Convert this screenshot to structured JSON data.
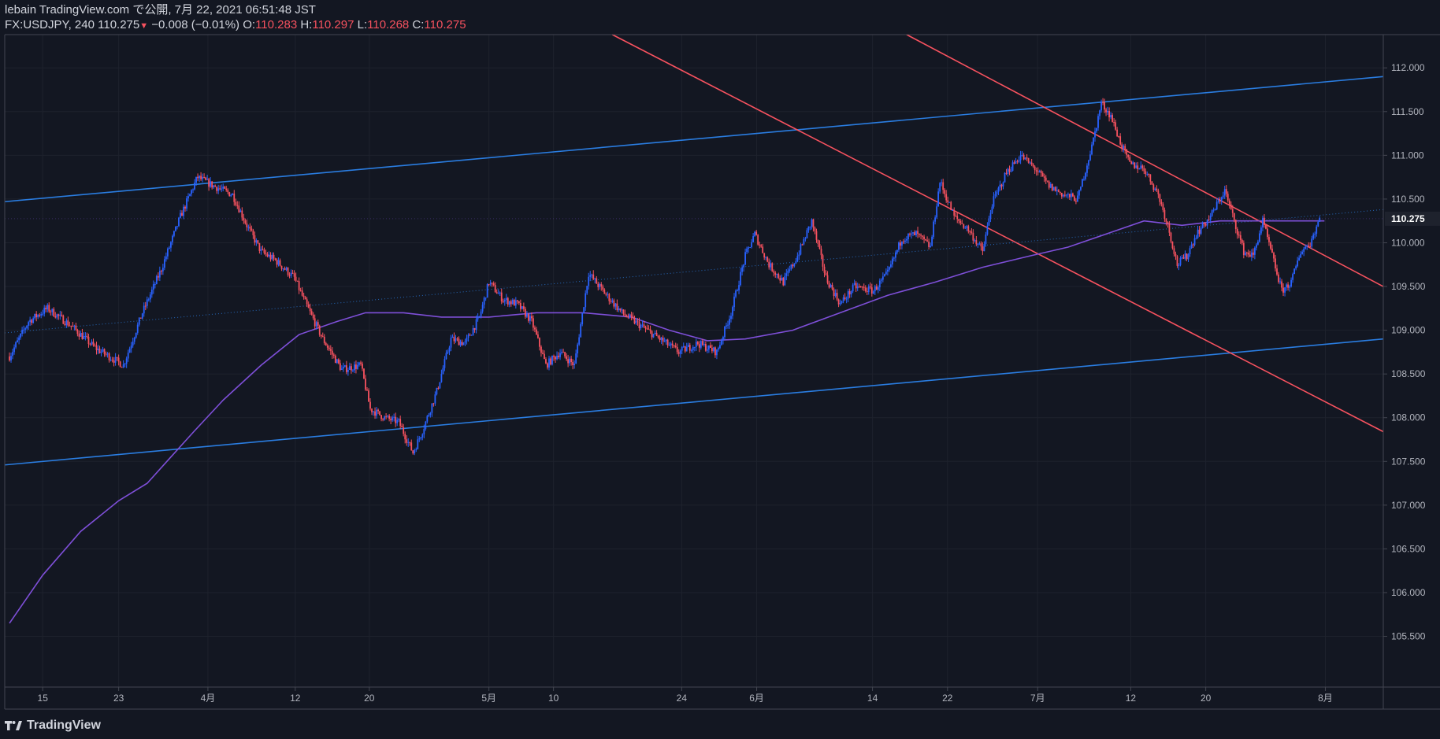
{
  "header": {
    "publish_line": "lebain TradingView.com で公開, 7月 22, 2021 06:51:48 JST",
    "symbol": "FX:USDJPY, 240",
    "last": "110.275",
    "change": "−0.008 (−0.01%)",
    "o_label": "O:",
    "o_value": "110.283",
    "h_label": "H:",
    "h_value": "110.297",
    "l_label": "L:",
    "l_value": "110.268",
    "c_label": "C:",
    "c_value": "110.275"
  },
  "brand": {
    "name": "TradingView",
    "icon": "tradingview-logo-icon"
  },
  "colors": {
    "background": "#131722",
    "up": "#2962ff",
    "down": "#f7525f",
    "trendline_blue": "#2a7de1",
    "trendline_red": "#f7525f",
    "ma": "#7e4fd8",
    "grid": "#1e222d",
    "axis_text": "#b2b5be"
  },
  "chart_data": {
    "type": "candlestick",
    "title": "",
    "xlabel": "",
    "ylabel": "",
    "ylim": [
      104.92,
      112.38
    ],
    "y_ticks": [
      "105.500",
      "106.000",
      "106.500",
      "107.000",
      "107.500",
      "108.000",
      "108.500",
      "109.000",
      "109.500",
      "110.000",
      "110.500",
      "111.000",
      "111.500",
      "112.000"
    ],
    "x_ticks": [
      {
        "label": "15",
        "day": 14.0
      },
      {
        "label": "23",
        "day": 22.0
      },
      {
        "label": "4月",
        "day": 31.4
      },
      {
        "label": "12",
        "day": 40.6
      },
      {
        "label": "20",
        "day": 48.4
      },
      {
        "label": "5月",
        "day": 61.0
      },
      {
        "label": "10",
        "day": 67.8
      },
      {
        "label": "24",
        "day": 81.3
      },
      {
        "label": "6月",
        "day": 89.2
      },
      {
        "label": "14",
        "day": 101.4
      },
      {
        "label": "22",
        "day": 109.3
      },
      {
        "label": "7月",
        "day": 118.8
      },
      {
        "label": "12",
        "day": 128.6
      },
      {
        "label": "20",
        "day": 136.5
      },
      {
        "label": "8月",
        "day": 149.1
      }
    ],
    "last_price_label": "110.275",
    "price_path": [
      {
        "day": 10.5,
        "price": 108.7
      },
      {
        "day": 12.5,
        "price": 109.1
      },
      {
        "day": 14.5,
        "price": 109.25
      },
      {
        "day": 17.0,
        "price": 109.05
      },
      {
        "day": 19.5,
        "price": 108.8
      },
      {
        "day": 22.5,
        "price": 108.6
      },
      {
        "day": 24.5,
        "price": 109.2
      },
      {
        "day": 26.5,
        "price": 109.7
      },
      {
        "day": 28.5,
        "price": 110.3
      },
      {
        "day": 30.3,
        "price": 110.75
      },
      {
        "day": 32.0,
        "price": 110.65
      },
      {
        "day": 34.0,
        "price": 110.55
      },
      {
        "day": 35.5,
        "price": 110.2
      },
      {
        "day": 37.0,
        "price": 109.9
      },
      {
        "day": 38.5,
        "price": 109.8
      },
      {
        "day": 40.5,
        "price": 109.6
      },
      {
        "day": 41.5,
        "price": 109.35
      },
      {
        "day": 43.5,
        "price": 108.9
      },
      {
        "day": 45.5,
        "price": 108.55
      },
      {
        "day": 47.5,
        "price": 108.6
      },
      {
        "day": 48.5,
        "price": 108.1
      },
      {
        "day": 50.0,
        "price": 108.0
      },
      {
        "day": 51.5,
        "price": 107.95
      },
      {
        "day": 53.0,
        "price": 107.6
      },
      {
        "day": 54.0,
        "price": 107.85
      },
      {
        "day": 55.5,
        "price": 108.3
      },
      {
        "day": 57.0,
        "price": 108.9
      },
      {
        "day": 58.5,
        "price": 108.85
      },
      {
        "day": 60.0,
        "price": 109.15
      },
      {
        "day": 61.0,
        "price": 109.55
      },
      {
        "day": 62.5,
        "price": 109.35
      },
      {
        "day": 64.0,
        "price": 109.3
      },
      {
        "day": 65.5,
        "price": 109.1
      },
      {
        "day": 67.0,
        "price": 108.6
      },
      {
        "day": 68.5,
        "price": 108.75
      },
      {
        "day": 70.0,
        "price": 108.6
      },
      {
        "day": 71.5,
        "price": 109.65
      },
      {
        "day": 73.0,
        "price": 109.45
      },
      {
        "day": 75.0,
        "price": 109.2
      },
      {
        "day": 77.0,
        "price": 109.05
      },
      {
        "day": 79.0,
        "price": 108.9
      },
      {
        "day": 81.0,
        "price": 108.75
      },
      {
        "day": 83.0,
        "price": 108.85
      },
      {
        "day": 85.0,
        "price": 108.75
      },
      {
        "day": 86.5,
        "price": 109.2
      },
      {
        "day": 88.0,
        "price": 109.85
      },
      {
        "day": 89.0,
        "price": 110.1
      },
      {
        "day": 90.5,
        "price": 109.75
      },
      {
        "day": 92.0,
        "price": 109.55
      },
      {
        "day": 93.5,
        "price": 109.85
      },
      {
        "day": 95.0,
        "price": 110.25
      },
      {
        "day": 96.5,
        "price": 109.6
      },
      {
        "day": 98.0,
        "price": 109.3
      },
      {
        "day": 99.5,
        "price": 109.5
      },
      {
        "day": 101.5,
        "price": 109.45
      },
      {
        "day": 103.0,
        "price": 109.65
      },
      {
        "day": 104.5,
        "price": 110.05
      },
      {
        "day": 106.0,
        "price": 110.1
      },
      {
        "day": 107.5,
        "price": 109.95
      },
      {
        "day": 108.5,
        "price": 110.7
      },
      {
        "day": 110.0,
        "price": 110.3
      },
      {
        "day": 111.5,
        "price": 110.15
      },
      {
        "day": 113.0,
        "price": 109.9
      },
      {
        "day": 114.0,
        "price": 110.45
      },
      {
        "day": 115.5,
        "price": 110.8
      },
      {
        "day": 117.0,
        "price": 111.0
      },
      {
        "day": 118.5,
        "price": 110.85
      },
      {
        "day": 120.0,
        "price": 110.65
      },
      {
        "day": 121.5,
        "price": 110.55
      },
      {
        "day": 123.0,
        "price": 110.5
      },
      {
        "day": 124.5,
        "price": 111.1
      },
      {
        "day": 125.5,
        "price": 111.6
      },
      {
        "day": 126.5,
        "price": 111.45
      },
      {
        "day": 127.5,
        "price": 111.15
      },
      {
        "day": 128.5,
        "price": 110.9
      },
      {
        "day": 130.0,
        "price": 110.85
      },
      {
        "day": 131.5,
        "price": 110.55
      },
      {
        "day": 132.5,
        "price": 110.2
      },
      {
        "day": 133.5,
        "price": 109.75
      },
      {
        "day": 134.5,
        "price": 109.85
      },
      {
        "day": 135.5,
        "price": 110.1
      },
      {
        "day": 137.0,
        "price": 110.3
      },
      {
        "day": 138.5,
        "price": 110.6
      },
      {
        "day": 139.5,
        "price": 110.25
      },
      {
        "day": 140.5,
        "price": 109.9
      },
      {
        "day": 141.5,
        "price": 109.85
      },
      {
        "day": 142.5,
        "price": 110.25
      },
      {
        "day": 143.5,
        "price": 109.85
      },
      {
        "day": 144.5,
        "price": 109.45
      },
      {
        "day": 145.5,
        "price": 109.55
      },
      {
        "day": 146.5,
        "price": 109.9
      },
      {
        "day": 147.5,
        "price": 110.0
      },
      {
        "day": 148.5,
        "price": 110.28
      }
    ],
    "moving_average": [
      {
        "day": 10.5,
        "price": 105.65
      },
      {
        "day": 14.0,
        "price": 106.2
      },
      {
        "day": 18.0,
        "price": 106.7
      },
      {
        "day": 22.0,
        "price": 107.05
      },
      {
        "day": 25.0,
        "price": 107.25
      },
      {
        "day": 27.5,
        "price": 107.55
      },
      {
        "day": 30.0,
        "price": 107.85
      },
      {
        "day": 33.0,
        "price": 108.2
      },
      {
        "day": 37.0,
        "price": 108.6
      },
      {
        "day": 41.0,
        "price": 108.95
      },
      {
        "day": 45.0,
        "price": 109.1
      },
      {
        "day": 48.0,
        "price": 109.2
      },
      {
        "day": 52.0,
        "price": 109.2
      },
      {
        "day": 56.0,
        "price": 109.15
      },
      {
        "day": 61.0,
        "price": 109.15
      },
      {
        "day": 66.0,
        "price": 109.2
      },
      {
        "day": 71.0,
        "price": 109.2
      },
      {
        "day": 76.0,
        "price": 109.15
      },
      {
        "day": 80.0,
        "price": 109.0
      },
      {
        "day": 84.0,
        "price": 108.88
      },
      {
        "day": 88.0,
        "price": 108.9
      },
      {
        "day": 93.0,
        "price": 109.0
      },
      {
        "day": 98.0,
        "price": 109.2
      },
      {
        "day": 103.0,
        "price": 109.4
      },
      {
        "day": 108.0,
        "price": 109.55
      },
      {
        "day": 113.0,
        "price": 109.72
      },
      {
        "day": 118.0,
        "price": 109.85
      },
      {
        "day": 122.0,
        "price": 109.95
      },
      {
        "day": 126.0,
        "price": 110.1
      },
      {
        "day": 130.0,
        "price": 110.25
      },
      {
        "day": 134.0,
        "price": 110.2
      },
      {
        "day": 138.0,
        "price": 110.25
      },
      {
        "day": 142.0,
        "price": 110.25
      },
      {
        "day": 146.0,
        "price": 110.25
      },
      {
        "day": 149.0,
        "price": 110.25
      }
    ],
    "trendlines": [
      {
        "color": "blue",
        "from": {
          "day": 10.0,
          "price": 110.47
        },
        "to": {
          "day": 155.2,
          "price": 111.9
        }
      },
      {
        "color": "blue",
        "from": {
          "day": 10.0,
          "price": 107.46
        },
        "to": {
          "day": 155.2,
          "price": 108.9
        }
      },
      {
        "color": "red",
        "from": {
          "day": 74.0,
          "price": 112.38
        },
        "to": {
          "day": 155.2,
          "price": 107.84
        }
      },
      {
        "color": "red",
        "from": {
          "day": 105.0,
          "price": 112.38
        },
        "to": {
          "day": 155.2,
          "price": 109.5
        }
      },
      {
        "color": "dotted",
        "from": {
          "day": 10.0,
          "price": 108.97
        },
        "to": {
          "day": 155.2,
          "price": 110.38
        }
      }
    ]
  }
}
